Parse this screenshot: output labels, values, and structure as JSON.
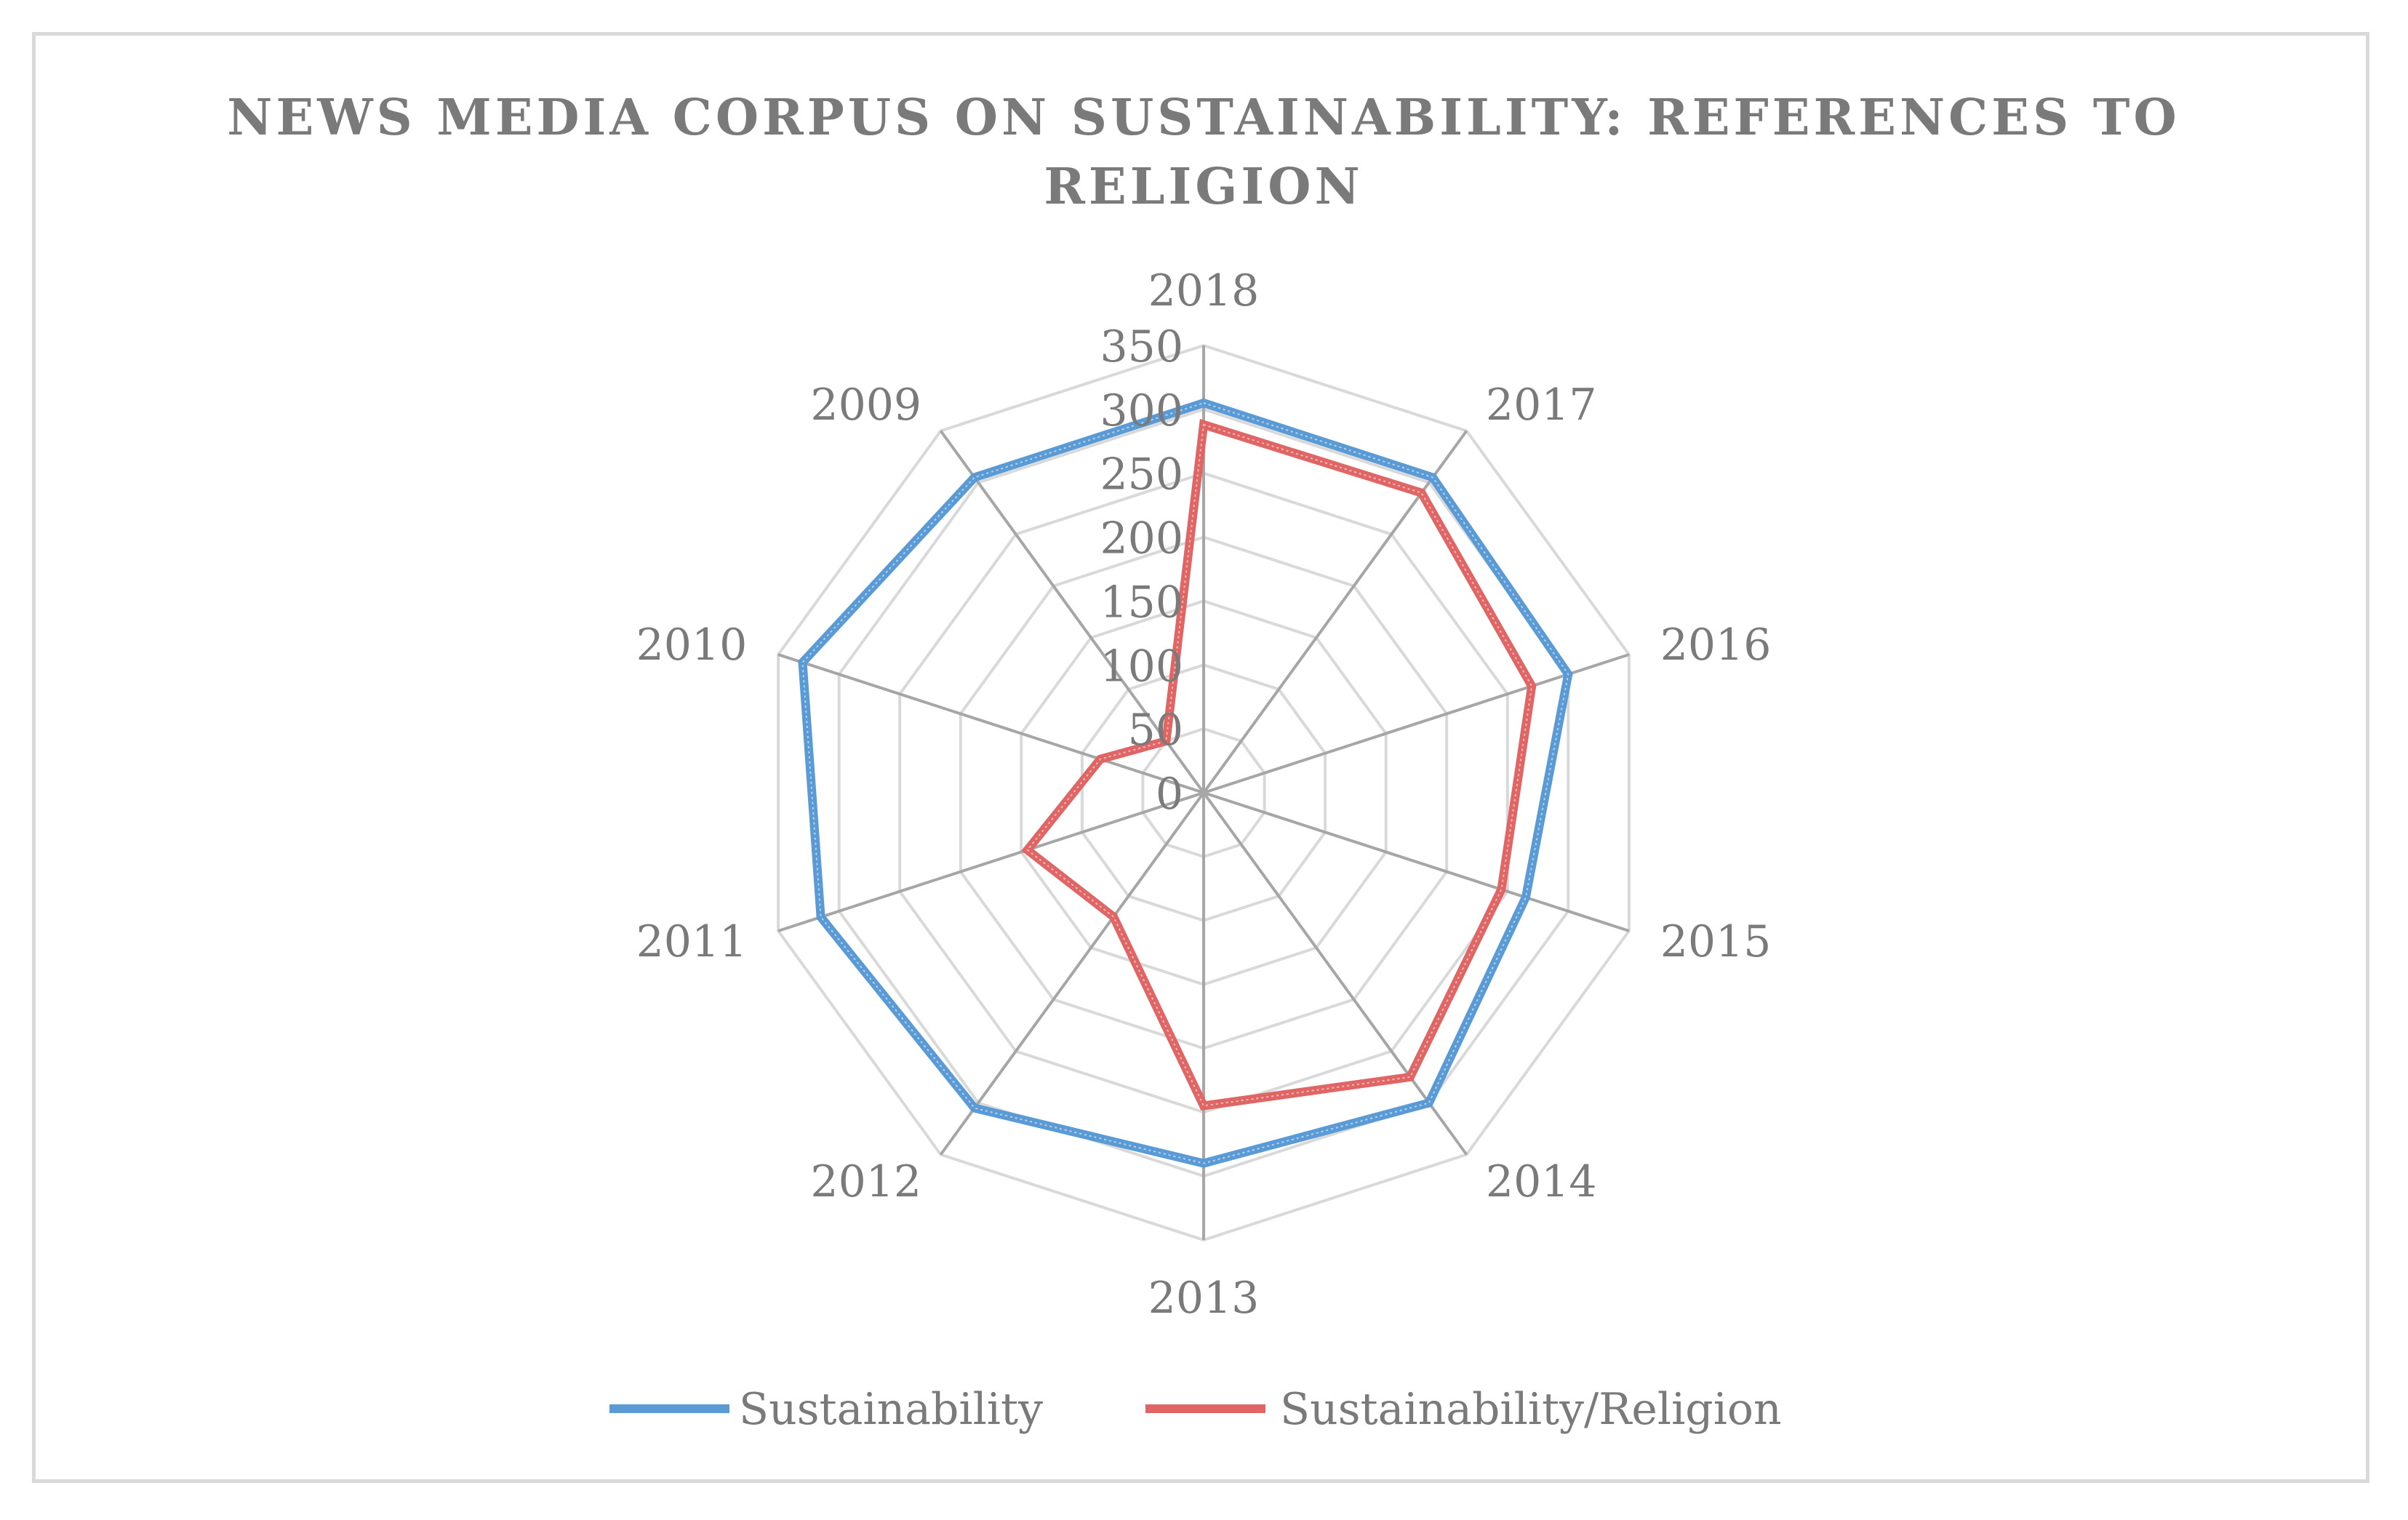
{
  "chart_data": {
    "type": "radar",
    "title_lines": [
      "NEWS MEDIA CORPUS ON SUSTAINABILITY: REFERENCES TO",
      "RELIGION"
    ],
    "categories": [
      "2018",
      "2017",
      "2016",
      "2015",
      "2014",
      "2013",
      "2012",
      "2011",
      "2010",
      "2009"
    ],
    "ticks": [
      "0",
      "50",
      "100",
      "150",
      "200",
      "250",
      "300",
      "350"
    ],
    "rmax": 350,
    "series": [
      {
        "name": "Sustainability",
        "color": "#5b9bd5",
        "values": [
          305,
          305,
          300,
          265,
          300,
          290,
          305,
          315,
          330,
          305
        ]
      },
      {
        "name": "Sustainability/Religion",
        "color": "#e06666",
        "values": [
          288,
          290,
          270,
          245,
          275,
          245,
          120,
          145,
          85,
          50
        ]
      }
    ],
    "legend_position": "bottom"
  }
}
